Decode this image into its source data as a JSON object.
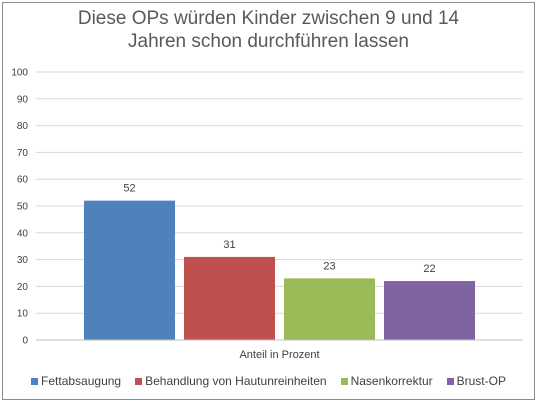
{
  "chart_data": {
    "type": "bar",
    "title_lines": [
      "Diese OPs würden Kinder zwischen 9 und 14",
      "Jahren schon durchführen lassen"
    ],
    "xlabel": "Anteil in Prozent",
    "ylabel": "",
    "ylim": [
      0,
      100
    ],
    "yticks": [
      "0",
      "10",
      "20",
      "30",
      "40",
      "50",
      "60",
      "70",
      "80",
      "90",
      "100"
    ],
    "grid": true,
    "legend_position": "bottom",
    "series": [
      {
        "name": "Fettabsaugung",
        "value": 52,
        "label": "52",
        "color": "#4f81bd"
      },
      {
        "name": "Behandlung von Hautunreinheiten",
        "value": 31,
        "label": "31",
        "color": "#c0504d"
      },
      {
        "name": "Nasenkorrektur",
        "value": 23,
        "label": "23",
        "color": "#9bbb59"
      },
      {
        "name": "Brust-OP",
        "value": 22,
        "label": "22",
        "color": "#8064a2"
      }
    ]
  }
}
